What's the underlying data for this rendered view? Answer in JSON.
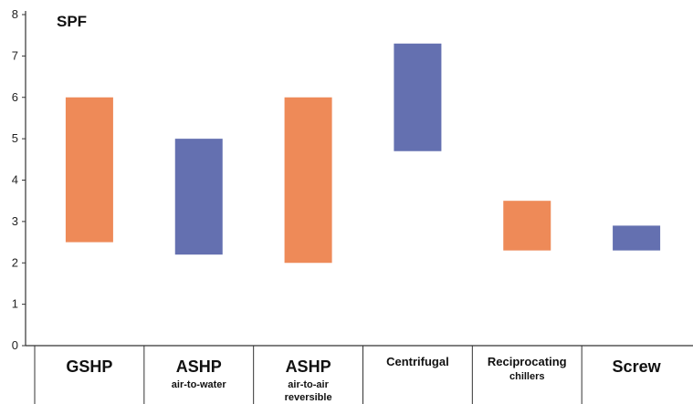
{
  "chart_data": {
    "type": "bar",
    "subtype": "floating-range",
    "ylabel": "SPF",
    "ylim": [
      0,
      8
    ],
    "yticks": [
      "0",
      "1",
      "2",
      "3",
      "4",
      "5",
      "6",
      "7",
      "8"
    ],
    "grid": false,
    "colors": {
      "orange": "#ee8a58",
      "blue": "#6470b0"
    },
    "categories": [
      {
        "main": "GSHP",
        "sub": [],
        "low": 2.5,
        "high": 6.0,
        "color": "orange"
      },
      {
        "main": "ASHP",
        "sub": [
          "air-to-water"
        ],
        "low": 2.2,
        "high": 5.0,
        "color": "blue"
      },
      {
        "main": "ASHP",
        "sub": [
          "air-to-air",
          "reversible"
        ],
        "low": 2.0,
        "high": 6.0,
        "color": "orange"
      },
      {
        "main": "Centrifugal",
        "sub": [],
        "low": 4.7,
        "high": 7.3,
        "color": "blue"
      },
      {
        "main": "Reciprocating",
        "sub": [
          "chillers"
        ],
        "low": 2.3,
        "high": 3.5,
        "color": "orange"
      },
      {
        "main": "Screw",
        "sub": [],
        "low": 2.3,
        "high": 2.9,
        "color": "blue"
      }
    ]
  }
}
